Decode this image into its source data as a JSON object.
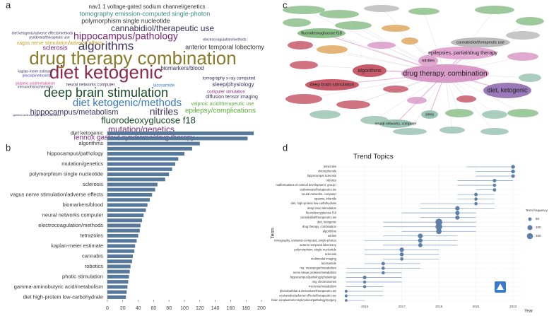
{
  "chart_data": [
    {
      "type": "wordcloud",
      "panel": "a",
      "words": [
        {
          "text": "nav1 1 voltage-gated sodium channel/genetics",
          "color": "#333333"
        },
        {
          "text": "tomography emission-computed single-photon",
          "color": "#3b8a7a"
        },
        {
          "text": "polymorphism single nucleotide",
          "color": "#333333"
        },
        {
          "text": "cannabidiol/therapeutic use",
          "color": "#3b3060"
        },
        {
          "text": "hippocampus/pathology",
          "color": "#7b2a7a"
        },
        {
          "text": "algorithms",
          "color": "#3b3060"
        },
        {
          "text": "anterior temporal lobectomy",
          "color": "#333333"
        },
        {
          "text": "drug therapy combination",
          "color": "#8b7a2a"
        },
        {
          "text": "diet ketogenic",
          "color": "#8b2a4a"
        },
        {
          "text": "deep brain stimulation",
          "color": "#1a4a2a"
        },
        {
          "text": "diet ketogenic/methods",
          "color": "#3a7abf"
        },
        {
          "text": "nitriles",
          "color": "#3b3060"
        },
        {
          "text": "hippocampus/metabolism",
          "color": "#3b3060"
        },
        {
          "text": "epilepsy/complications",
          "color": "#5ab03a"
        },
        {
          "text": "fluorodeoxyglucose f18",
          "color": "#1a4a2a"
        },
        {
          "text": "mutation/genetics",
          "color": "#7b2a7a"
        },
        {
          "text": "lennox gastaut syndrome/drug therapy",
          "color": "#7b2a7a"
        },
        {
          "text": "sclerosis",
          "color": "#7b2a7a"
        },
        {
          "text": "vagus nerve stimulation/adverse effects",
          "color": "#c8a020"
        },
        {
          "text": "biomarkers/blood",
          "color": "#3b3060"
        },
        {
          "text": "sleep/physiology",
          "color": "#3b3060"
        },
        {
          "text": "valproic acid/therapeutic use",
          "color": "#5ab03a"
        },
        {
          "text": "diffusion tensor imaging",
          "color": "#3b3060"
        },
        {
          "text": "computer simulation",
          "color": "#7b2a7a"
        },
        {
          "text": "tomography x-ray computed",
          "color": "#3b3060"
        },
        {
          "text": "neural networks computer",
          "color": "#3b3060"
        },
        {
          "text": "lacosamide",
          "color": "#3a7abf"
        },
        {
          "text": "kaplan-meier estimate",
          "color": "#3b3060"
        },
        {
          "text": "pilocarpine/toxicity",
          "color": "#3a3aaa"
        },
        {
          "text": "diet ketogenic/adverse effects/methods",
          "color": "#3b3060"
        },
        {
          "text": "pyridones/therapeutic use",
          "color": "#3b3060"
        },
        {
          "text": "electrocoagulation/methods",
          "color": "#3b3060"
        },
        {
          "text": "glutamic acid/metabolism",
          "color": "#c03a8a"
        },
        {
          "text": "immunohistochemistry",
          "color": "#3b3060"
        },
        {
          "text": "gamma-aminobutyric acid/metabolism",
          "color": "#3b3060"
        }
      ]
    },
    {
      "type": "network",
      "panel": "c",
      "nodes": [
        {
          "label": "drug therapy, combination",
          "color": "#d99ac8"
        },
        {
          "label": "diet, ketogenic",
          "color": "#9a7ab8"
        },
        {
          "label": "epilepsies, partial/drug therapy",
          "color": "#e4a8d4"
        },
        {
          "label": "cannabidiol/therapeutic use",
          "color": "#bcbcbc"
        },
        {
          "label": "nitriles",
          "color": "#e0a8d0"
        },
        {
          "label": "algorithms",
          "color": "#c85a6a"
        },
        {
          "label": "deep brain stimulation",
          "color": "#c85a6a"
        },
        {
          "label": "fluorodeoxyglucose f18",
          "color": "#8cc08c"
        },
        {
          "label": "sleep",
          "color": "#9cc4b4"
        },
        {
          "label": "neural networks, computer",
          "color": "#9cc4b4"
        }
      ]
    },
    {
      "type": "bar",
      "panel": "b",
      "orientation": "horizontal",
      "color": "#56789a",
      "categories": [
        "diet ketogenic",
        null,
        "algorithms",
        null,
        "hippocampus/pathology",
        null,
        "mutation/genetics",
        null,
        "polymorphism single nucleotide",
        null,
        "sclerosis",
        null,
        "vagus nerve stimulation/adverse effects",
        null,
        "biomarkers/blood",
        null,
        "neural networks computer",
        null,
        "electrocoagulation/methods",
        null,
        "tetrazoles",
        null,
        "kaplan-meier estimate",
        null,
        "cannabis",
        null,
        "robotics",
        null,
        "photic stimulation",
        null,
        "gamma-aminobutyric acid/metabolism",
        null,
        "diet high-protein low-carbohydrate"
      ],
      "values": [
        190,
        182,
        120,
        110,
        100,
        92,
        88,
        84,
        80,
        75,
        65,
        62,
        58,
        55,
        52,
        50,
        47,
        45,
        43,
        42,
        40,
        38,
        36,
        35,
        33,
        32,
        30,
        29,
        28,
        27,
        26,
        25,
        24
      ],
      "xlim": [
        0,
        200
      ],
      "xticks": [
        0,
        20,
        40,
        60,
        80,
        100,
        120,
        140,
        160,
        180,
        200
      ],
      "grid": false
    },
    {
      "type": "trend",
      "panel": "d",
      "title": "Trend Topics",
      "xlabel": "Year",
      "ylabel": "Term",
      "legend_title": "Term frequency",
      "legend_sizes": [
        50,
        100,
        150
      ],
      "color": "#5b7fa8",
      "range_color": "#8fa8c8",
      "terms": [
        "tetrazoles",
        "chlorophenols",
        "hippocampal sclerosis",
        "robotics",
        "malformations of cortical development, group i",
        "carbamates/therapeutic use",
        "neural networks, computer",
        "spasms, infantile",
        "diet, high-protein low-carbohydrate",
        "deep brain stimulation",
        "fluorodeoxyglucose f18",
        "cannabidiol/therapeutic use",
        "diet, ketogenic",
        "drug therapy, combination",
        "algorithms",
        "nitriles",
        "tomography, emission-computed, single-photon",
        "anterior temporal lobectomy",
        "polymorphism, single nucleotide",
        "sclerosis",
        "multimodal imaging",
        "lacosamide",
        "rna, messenger/metabolism",
        "nerve tissue proteins/metabolism",
        "hippocampus/pathology/physiology",
        "ring chromosomes",
        "microrna/metabolism",
        "phenobarbital & derivatives/therapeutic use",
        "acetamides/adverse effects/therapeutic use",
        "brain neoplasms/complications/pathology/surgery"
      ],
      "year": [
        2023,
        2023,
        2023,
        2022,
        2022,
        2022,
        2021,
        2021,
        2021,
        2020,
        2020,
        2020,
        2019,
        2019,
        2019,
        2018,
        2018,
        2018,
        2017,
        2017,
        2017,
        2016,
        2016,
        2016,
        2015,
        2015,
        2015,
        2014,
        2014,
        2014
      ],
      "start": [
        2020.5,
        2021,
        2021,
        2020,
        2020,
        2021,
        2020,
        2020,
        2018,
        2018,
        2017,
        2018,
        2016,
        2016,
        2017,
        2016,
        2015,
        2016,
        2015,
        2015,
        2016,
        2015,
        2014,
        2014,
        2014,
        2014,
        2014,
        2014,
        2014,
        2014
      ],
      "end": [
        2023,
        2023,
        2023,
        2023,
        2022,
        2022,
        2022,
        2022,
        2022,
        2022,
        2021,
        2021,
        2021,
        2021,
        2021,
        2020,
        2020,
        2020,
        2019,
        2019,
        2019,
        2018,
        2018,
        2017,
        2017,
        2017,
        2016,
        2016,
        2016,
        2015
      ],
      "frequency": [
        60,
        60,
        55,
        50,
        45,
        45,
        50,
        45,
        45,
        80,
        75,
        75,
        190,
        180,
        120,
        95,
        80,
        70,
        80,
        65,
        45,
        50,
        45,
        45,
        55,
        40,
        40,
        35,
        35,
        30
      ],
      "xlim": [
        2013.7,
        2023.3
      ],
      "xticks": [
        2015,
        2017,
        2019,
        2021,
        2023
      ]
    }
  ]
}
